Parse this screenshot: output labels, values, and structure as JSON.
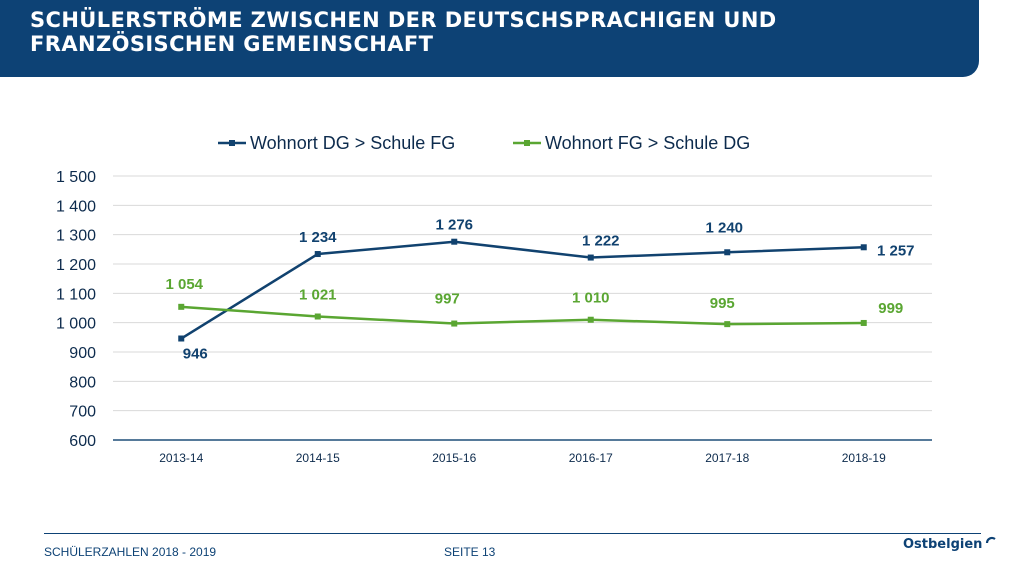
{
  "header": {
    "title": "SCHÜLERSTRÖME ZWISCHEN DER DEUTSCHSPRACHIGEN UND FRANZÖSISCHEN GEMEINSCHAFT"
  },
  "footer": {
    "left": "SCHÜLERZAHLEN 2018 - 2019",
    "page": "SEITE 13",
    "logo": "Ostbelgien"
  },
  "colors": {
    "brand": "#0d4275",
    "series1": "#11426f",
    "series2": "#5aa632",
    "grid": "#d9d9d9"
  },
  "chart_data": {
    "type": "line",
    "title": "",
    "xlabel": "",
    "ylabel": "",
    "categories": [
      "2013-14",
      "2014-15",
      "2015-16",
      "2016-17",
      "2017-18",
      "2018-19"
    ],
    "ylim": [
      600,
      1500
    ],
    "yticks": [
      600,
      700,
      800,
      900,
      1000,
      1100,
      1200,
      1300,
      1400,
      1500
    ],
    "ytick_labels": [
      "600",
      "700",
      "800",
      "900",
      "1 000",
      "1 100",
      "1 200",
      "1 300",
      "1 400",
      "1 500"
    ],
    "grid": true,
    "legend_position": "top",
    "series": [
      {
        "name": "Wohnort DG > Schule FG",
        "values": [
          946,
          1234,
          1276,
          1222,
          1240,
          1257
        ],
        "labels": [
          "946",
          "1 234",
          "1 276",
          "1 222",
          "1 240",
          "1 257"
        ],
        "color": "#11426f"
      },
      {
        "name": "Wohnort FG > Schule DG",
        "values": [
          1054,
          1021,
          997,
          1010,
          995,
          999
        ],
        "labels": [
          "1 054",
          "1 021",
          "997",
          "1 010",
          "995",
          "999"
        ],
        "color": "#5aa632"
      }
    ]
  }
}
